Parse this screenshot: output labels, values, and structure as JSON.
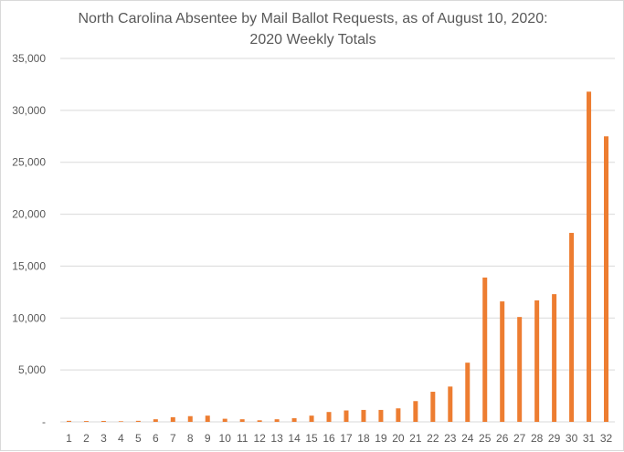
{
  "chart_data": {
    "type": "bar",
    "title": "North Carolina Absentee by Mail Ballot Requests, as of August 10, 2020:",
    "subtitle": "2020 Weekly Totals",
    "xlabel": "",
    "ylabel": "",
    "categories": [
      "1",
      "2",
      "3",
      "4",
      "5",
      "6",
      "7",
      "8",
      "9",
      "10",
      "11",
      "12",
      "13",
      "14",
      "15",
      "16",
      "17",
      "18",
      "19",
      "20",
      "21",
      "22",
      "23",
      "24",
      "25",
      "26",
      "27",
      "28",
      "29",
      "30",
      "31",
      "32"
    ],
    "values": [
      100,
      80,
      90,
      60,
      100,
      250,
      450,
      550,
      600,
      300,
      250,
      150,
      250,
      350,
      600,
      950,
      1100,
      1150,
      1150,
      1300,
      2000,
      2900,
      3400,
      5700,
      13900,
      11600,
      10100,
      11700,
      12300,
      18200,
      31800,
      27500
    ],
    "ylim": [
      0,
      35000
    ],
    "yticks": [
      0,
      5000,
      10000,
      15000,
      20000,
      25000,
      30000,
      35000
    ],
    "ytick_labels": [
      "-",
      "5,000",
      "10,000",
      "15,000",
      "20,000",
      "25,000",
      "30,000",
      "35,000"
    ],
    "grid": true,
    "legend": "none",
    "bar_color": "#ED7D31"
  }
}
